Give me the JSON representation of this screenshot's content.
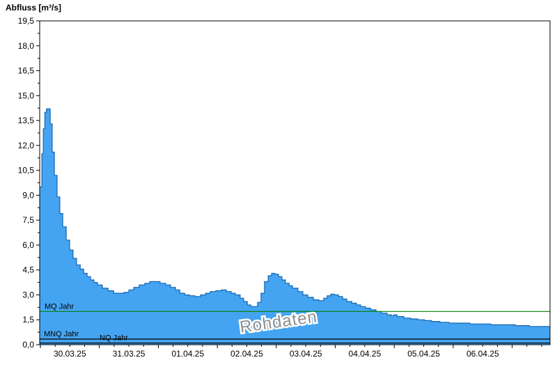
{
  "chart_data": {
    "type": "area",
    "title": "Abfluss [m³/s]",
    "ylabel": "Abfluss [m³/s]",
    "xlabel": "",
    "ylim": [
      0,
      19.5
    ],
    "y_major_step": 1.5,
    "y_tick_labels": [
      "0,0",
      "1,5",
      "3,0",
      "4,5",
      "6,0",
      "7,5",
      "9,0",
      "10,5",
      "12,0",
      "13,5",
      "15,0",
      "16,5",
      "18,0",
      "19,5"
    ],
    "x_tick_labels": [
      "30.03.25",
      "31.03.25",
      "01.04.25",
      "02.04.25",
      "03.04.25",
      "04.04.25",
      "05.04.25",
      "06.04.25"
    ],
    "x_unit": "hours_from_30_03_25_00h",
    "grid": false,
    "watermark": "Rohdaten",
    "reference_lines": [
      {
        "label": "MQ Jahr",
        "value": 2.0,
        "color": "#008000"
      },
      {
        "label": "MNQ Jahr",
        "value": 0.34,
        "color": "#000000"
      },
      {
        "label": "NQ Jahr",
        "value": 0.1,
        "color": "#000000"
      }
    ],
    "series": [
      {
        "name": "Abfluss Rohdaten",
        "unit": "m³/s",
        "points": [
          [
            0,
            9.5
          ],
          [
            0.6,
            11.5
          ],
          [
            1.2,
            13.0
          ],
          [
            1.8,
            14.0
          ],
          [
            2.5,
            14.2
          ],
          [
            3.4,
            14.2
          ],
          [
            4.0,
            13.3
          ],
          [
            4.8,
            11.6
          ],
          [
            5.7,
            10.2
          ],
          [
            6.8,
            8.9
          ],
          [
            7.9,
            7.9
          ],
          [
            9.1,
            7.1
          ],
          [
            10.5,
            6.3
          ],
          [
            11.9,
            5.7
          ],
          [
            13.3,
            5.2
          ],
          [
            14.7,
            4.8
          ],
          [
            16.2,
            4.55
          ],
          [
            17.6,
            4.3
          ],
          [
            19.0,
            4.1
          ],
          [
            20.4,
            3.9
          ],
          [
            21.8,
            3.75
          ],
          [
            23.2,
            3.6
          ],
          [
            25.2,
            3.4
          ],
          [
            27.5,
            3.25
          ],
          [
            29.8,
            3.1
          ],
          [
            31.7,
            3.1
          ],
          [
            34.0,
            3.15
          ],
          [
            36.0,
            3.3
          ],
          [
            38.0,
            3.45
          ],
          [
            40.2,
            3.6
          ],
          [
            42.5,
            3.7
          ],
          [
            44.5,
            3.8
          ],
          [
            46.5,
            3.8
          ],
          [
            48.7,
            3.7
          ],
          [
            51.0,
            3.6
          ],
          [
            53.0,
            3.45
          ],
          [
            55.0,
            3.3
          ],
          [
            56.7,
            3.1
          ],
          [
            58.7,
            3.0
          ],
          [
            60.6,
            2.95
          ],
          [
            62.9,
            2.9
          ],
          [
            65.2,
            3.0
          ],
          [
            67.2,
            3.1
          ],
          [
            69.1,
            3.2
          ],
          [
            71.4,
            3.25
          ],
          [
            73.7,
            3.3
          ],
          [
            75.7,
            3.2
          ],
          [
            77.6,
            3.1
          ],
          [
            79.3,
            3.0
          ],
          [
            81.3,
            2.8
          ],
          [
            82.7,
            2.6
          ],
          [
            84.2,
            2.4
          ],
          [
            85.6,
            2.3
          ],
          [
            87.0,
            2.3
          ],
          [
            88.4,
            2.55
          ],
          [
            89.8,
            3.1
          ],
          [
            91.2,
            3.8
          ],
          [
            92.7,
            4.15
          ],
          [
            94.1,
            4.3
          ],
          [
            95.5,
            4.25
          ],
          [
            96.9,
            4.1
          ],
          [
            98.3,
            3.9
          ],
          [
            99.7,
            3.7
          ],
          [
            101.2,
            3.55
          ],
          [
            102.6,
            3.4
          ],
          [
            104.8,
            3.2
          ],
          [
            106.8,
            3.0
          ],
          [
            108.8,
            2.85
          ],
          [
            111.1,
            2.7
          ],
          [
            113.3,
            2.65
          ],
          [
            115.3,
            2.8
          ],
          [
            116.7,
            2.95
          ],
          [
            118.2,
            3.05
          ],
          [
            119.6,
            3.0
          ],
          [
            121.3,
            2.9
          ],
          [
            123.0,
            2.75
          ],
          [
            124.7,
            2.6
          ],
          [
            126.7,
            2.5
          ],
          [
            128.6,
            2.4
          ],
          [
            130.3,
            2.3
          ],
          [
            132.3,
            2.2
          ],
          [
            134.3,
            2.1
          ],
          [
            136.6,
            2.0
          ],
          [
            138.8,
            1.9
          ],
          [
            141.1,
            1.8
          ],
          [
            142.8,
            1.75
          ],
          [
            143.9,
            1.8
          ],
          [
            145.1,
            1.7
          ],
          [
            147.9,
            1.6
          ],
          [
            150.7,
            1.55
          ],
          [
            153.6,
            1.5
          ],
          [
            156.4,
            1.45
          ],
          [
            159.2,
            1.4
          ],
          [
            162.6,
            1.35
          ],
          [
            166.3,
            1.3
          ],
          [
            170.6,
            1.3
          ],
          [
            174.8,
            1.25
          ],
          [
            179.1,
            1.25
          ],
          [
            183.3,
            1.2
          ],
          [
            187.6,
            1.2
          ],
          [
            193.3,
            1.15
          ],
          [
            199.0,
            1.1
          ],
          [
            203.2,
            1.1
          ],
          [
            207.4,
            1.05
          ]
        ]
      }
    ],
    "colors": {
      "area_fill": "#44a4f1",
      "area_stroke": "#1266b0",
      "axis": "#000000",
      "watermark": "#8f8f8f",
      "mq_line": "#008000"
    }
  }
}
